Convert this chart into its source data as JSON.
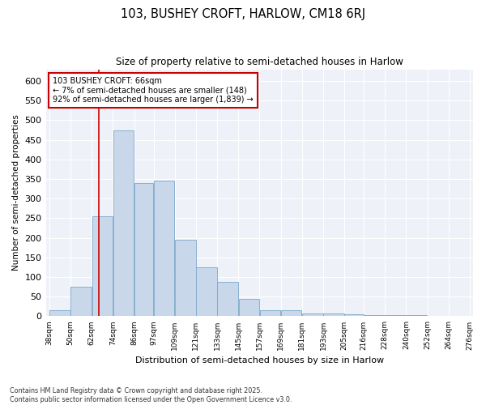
{
  "title": "103, BUSHEY CROFT, HARLOW, CM18 6RJ",
  "subtitle": "Size of property relative to semi-detached houses in Harlow",
  "xlabel": "Distribution of semi-detached houses by size in Harlow",
  "ylabel": "Number of semi-detached properties",
  "footnote": "Contains HM Land Registry data © Crown copyright and database right 2025.\nContains public sector information licensed under the Open Government Licence v3.0.",
  "annotation_title": "103 BUSHEY CROFT: 66sqm",
  "annotation_line1": "← 7% of semi-detached houses are smaller (148)",
  "annotation_line2": "92% of semi-detached houses are larger (1,839) →",
  "property_sqm": 66,
  "bar_color": "#c8d8ea",
  "bar_edge_color": "#7aa8cc",
  "vline_color": "#cc0000",
  "annotation_box_color": "#cc0000",
  "background_color": "#eef2f8",
  "bin_edges": [
    38,
    50,
    62,
    74,
    86,
    97,
    109,
    121,
    133,
    145,
    157,
    169,
    181,
    193,
    205,
    216,
    228,
    240,
    252,
    264,
    276
  ],
  "bar_heights": [
    15,
    75,
    255,
    475,
    340,
    345,
    195,
    125,
    87,
    45,
    15,
    15,
    8,
    7,
    5,
    2,
    2,
    2,
    1,
    1
  ],
  "ylim": [
    0,
    630
  ],
  "yticks": [
    0,
    50,
    100,
    150,
    200,
    250,
    300,
    350,
    400,
    450,
    500,
    550,
    600
  ],
  "bin_labels": [
    "38sqm",
    "50sqm",
    "62sqm",
    "74sqm",
    "86sqm",
    "97sqm",
    "109sqm",
    "121sqm",
    "133sqm",
    "145sqm",
    "157sqm",
    "169sqm",
    "181sqm",
    "193sqm",
    "205sqm",
    "216sqm",
    "228sqm",
    "240sqm",
    "252sqm",
    "264sqm",
    "276sqm"
  ]
}
